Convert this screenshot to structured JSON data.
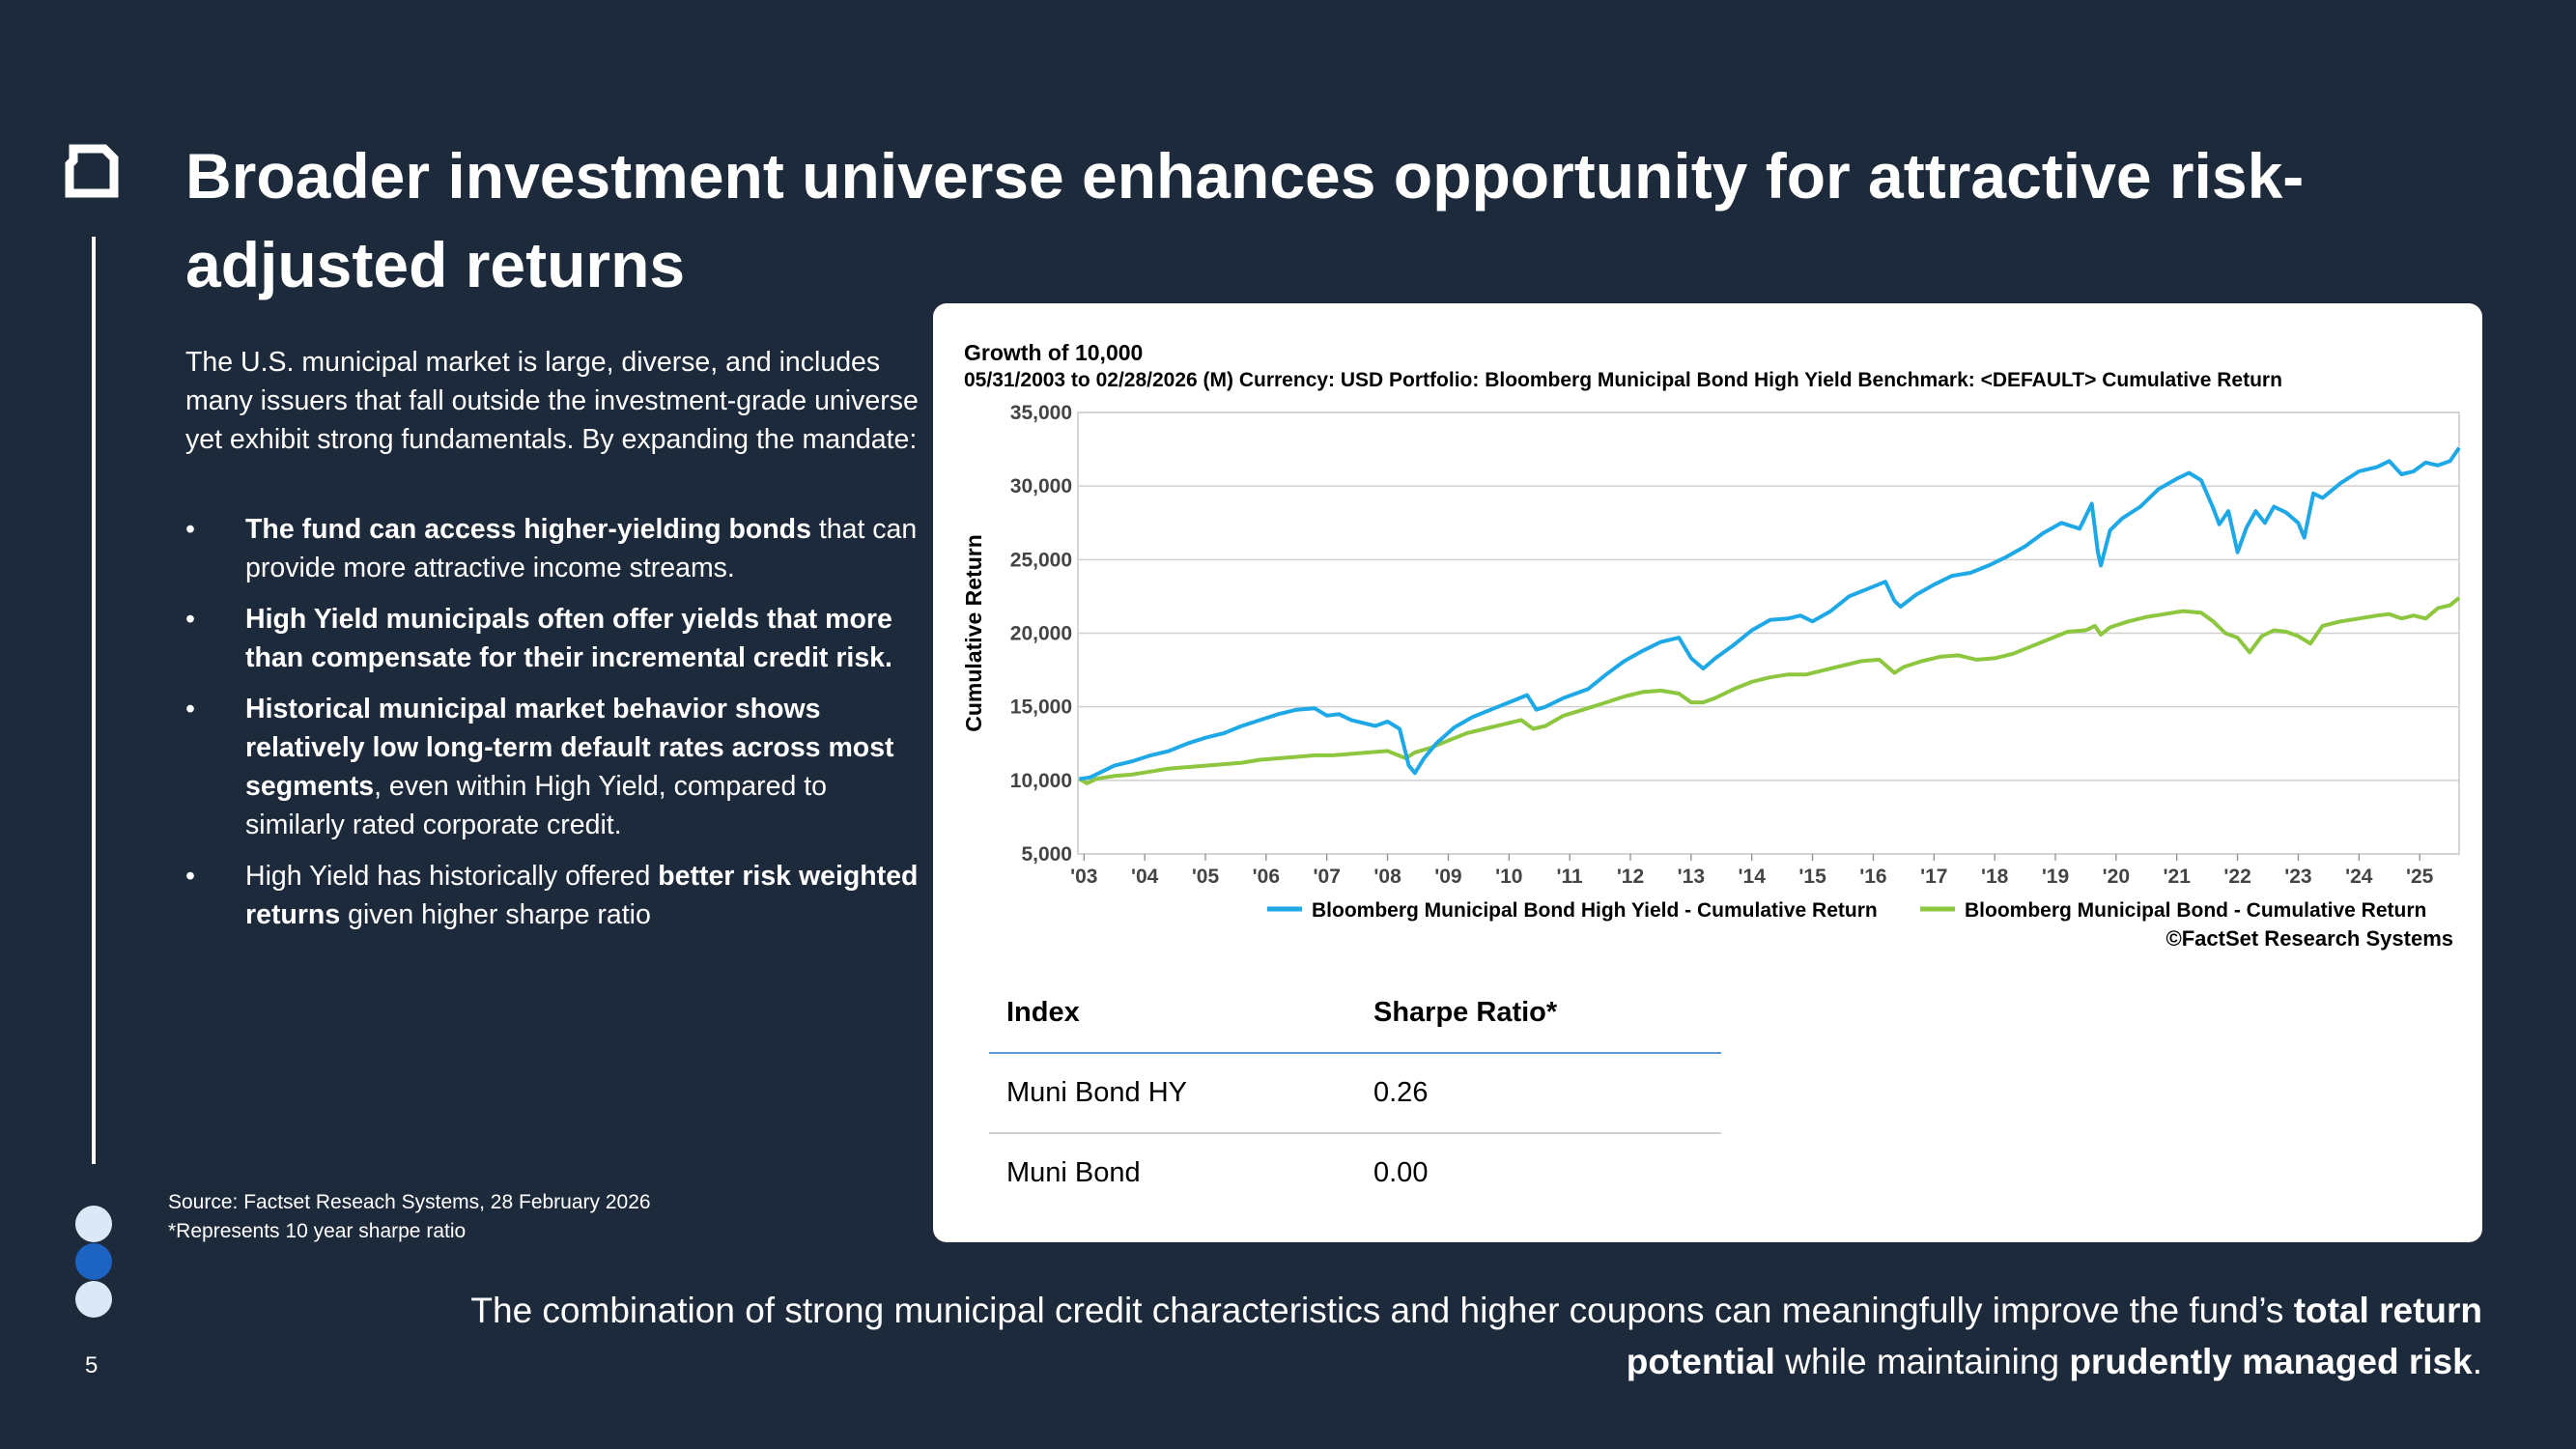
{
  "page_number": "5",
  "title": "Broader investment universe enhances opportunity for attractive risk-adjusted returns",
  "intro": "The U.S. municipal market is large, diverse, and includes many issuers that fall outside the investment-grade universe yet exhibit strong fundamentals. By expanding the mandate:",
  "bullet_marker": "•",
  "bullets": [
    {
      "bold": "The fund can access higher-yielding bonds",
      "rest": " that can provide more attractive income streams."
    },
    {
      "bold": "High Yield municipals often offer yields that more than compensate for their incremental credit risk.",
      "rest": ""
    },
    {
      "bold": "Historical municipal market behavior shows relatively low long-term default rates across most segments",
      "rest": ", even within High Yield, compared to similarly rated corporate credit."
    },
    {
      "pre": "High Yield has historically offered ",
      "bold": "better risk weighted returns",
      "rest": " given higher sharpe ratio"
    }
  ],
  "source": {
    "line1": "Source: Factset Reseach Systems, 28 February 2026",
    "line2": "*Represents 10 year sharpe ratio"
  },
  "table": {
    "headers": {
      "index": "Index",
      "sharpe": "Sharpe Ratio*"
    },
    "rows": [
      {
        "index": "Muni Bond HY",
        "sharpe": "0.26"
      },
      {
        "index": "Muni Bond",
        "sharpe": "0.00"
      }
    ]
  },
  "bottom": {
    "part1": "The combination of strong municipal credit characteristics and higher coupons can meaningfully improve the fund’s ",
    "bold1": "total return potential",
    "part2": " while maintaining ",
    "bold2": "prudently managed risk",
    "part3": "."
  },
  "chart_data": {
    "type": "line",
    "title": "Growth of 10,000",
    "subtitle": "05/31/2003 to 02/28/2026 (M) Currency: USD Portfolio: Bloomberg Municipal Bond High Yield Benchmark: <DEFAULT> Cumulative Return",
    "ylabel": "Cumulative Return",
    "xlabel": "",
    "ylim": [
      5000,
      35000
    ],
    "yticks": [
      5000,
      10000,
      15000,
      20000,
      25000,
      30000,
      35000
    ],
    "ytick_labels": [
      "5,000",
      "10,000",
      "15,000",
      "20,000",
      "25,000",
      "30,000",
      "35,000"
    ],
    "xlim": [
      2003.4,
      2026.15
    ],
    "xtick_positions": [
      2003.5,
      2004.5,
      2005.5,
      2006.5,
      2007.5,
      2008.5,
      2009.5,
      2010.5,
      2011.5,
      2012.5,
      2013.5,
      2014.5,
      2015.5,
      2016.5,
      2017.5,
      2018.5,
      2019.5,
      2020.5,
      2021.5,
      2022.5,
      2023.5,
      2024.5,
      2025.5
    ],
    "xtick_labels": [
      "'03",
      "'04",
      "'05",
      "'06",
      "'07",
      "'08",
      "'09",
      "'10",
      "'11",
      "'12",
      "'13",
      "'14",
      "'15",
      "'16",
      "'17",
      "'18",
      "'19",
      "'20",
      "'21",
      "'22",
      "'23",
      "'24",
      "'25"
    ],
    "grid": true,
    "legend_position": "bottom-right",
    "credit": "©FactSet Research Systems",
    "series": [
      {
        "name": "Bloomberg Municipal Bond High Yield - Cumulative Return",
        "color": "#1ea8e6",
        "x": [
          2003.42,
          2003.6,
          2003.8,
          2004.0,
          2004.3,
          2004.6,
          2004.9,
          2005.2,
          2005.5,
          2005.8,
          2006.1,
          2006.4,
          2006.7,
          2007.0,
          2007.3,
          2007.5,
          2007.7,
          2007.9,
          2008.1,
          2008.3,
          2008.5,
          2008.7,
          2008.85,
          2008.95,
          2009.1,
          2009.3,
          2009.6,
          2009.9,
          2010.2,
          2010.5,
          2010.8,
          2010.95,
          2011.1,
          2011.4,
          2011.8,
          2012.1,
          2012.4,
          2012.7,
          2013.0,
          2013.3,
          2013.5,
          2013.7,
          2013.9,
          2014.2,
          2014.5,
          2014.8,
          2015.1,
          2015.3,
          2015.5,
          2015.8,
          2016.1,
          2016.4,
          2016.7,
          2016.85,
          2016.95,
          2017.2,
          2017.5,
          2017.8,
          2018.1,
          2018.4,
          2018.7,
          2019.0,
          2019.3,
          2019.6,
          2019.9,
          2020.1,
          2020.2,
          2020.25,
          2020.4,
          2020.6,
          2020.9,
          2021.2,
          2021.5,
          2021.7,
          2021.9,
          2022.1,
          2022.2,
          2022.35,
          2022.5,
          2022.65,
          2022.8,
          2022.95,
          2023.1,
          2023.3,
          2023.5,
          2023.6,
          2023.75,
          2023.9,
          2024.2,
          2024.5,
          2024.8,
          2025.0,
          2025.2,
          2025.4,
          2025.6,
          2025.8,
          2026.0,
          2026.15
        ],
        "values": [
          10100,
          10200,
          10600,
          11000,
          11300,
          11700,
          12000,
          12500,
          12900,
          13200,
          13700,
          14100,
          14500,
          14800,
          14900,
          14400,
          14500,
          14100,
          13900,
          13700,
          14000,
          13500,
          11000,
          10500,
          11500,
          12500,
          13600,
          14300,
          14800,
          15300,
          15800,
          14800,
          15000,
          15600,
          16200,
          17200,
          18100,
          18800,
          19400,
          19700,
          18300,
          17600,
          18300,
          19200,
          20200,
          20900,
          21000,
          21200,
          20800,
          21500,
          22500,
          23000,
          23500,
          22200,
          21800,
          22600,
          23300,
          23900,
          24100,
          24600,
          25200,
          25900,
          26800,
          27500,
          27100,
          28800,
          25500,
          24600,
          27000,
          27800,
          28600,
          29800,
          30500,
          30900,
          30400,
          28500,
          27400,
          28300,
          25500,
          27200,
          28300,
          27500,
          28600,
          28200,
          27500,
          26500,
          29500,
          29200,
          30200,
          31000,
          31300,
          31700,
          30800,
          31000,
          31600,
          31400,
          31700,
          32600
        ]
      },
      {
        "name": "Bloomberg Municipal Bond - Cumulative Return",
        "color": "#8dc63f",
        "x": [
          2003.42,
          2003.55,
          2003.7,
          2004.0,
          2004.3,
          2004.6,
          2004.9,
          2005.2,
          2005.5,
          2005.8,
          2006.1,
          2006.4,
          2006.7,
          2007.0,
          2007.3,
          2007.6,
          2007.9,
          2008.2,
          2008.5,
          2008.8,
          2008.95,
          2009.2,
          2009.5,
          2009.8,
          2010.1,
          2010.4,
          2010.7,
          2010.9,
          2011.1,
          2011.4,
          2011.8,
          2012.1,
          2012.4,
          2012.7,
          2013.0,
          2013.3,
          2013.5,
          2013.7,
          2013.9,
          2014.2,
          2014.5,
          2014.8,
          2015.1,
          2015.4,
          2015.7,
          2016.0,
          2016.3,
          2016.6,
          2016.85,
          2017.0,
          2017.3,
          2017.6,
          2017.9,
          2018.2,
          2018.5,
          2018.8,
          2019.1,
          2019.4,
          2019.7,
          2020.0,
          2020.15,
          2020.25,
          2020.4,
          2020.7,
          2021.0,
          2021.3,
          2021.6,
          2021.9,
          2022.1,
          2022.3,
          2022.5,
          2022.7,
          2022.9,
          2023.1,
          2023.3,
          2023.5,
          2023.7,
          2023.9,
          2024.2,
          2024.5,
          2024.8,
          2025.0,
          2025.2,
          2025.4,
          2025.6,
          2025.8,
          2026.0,
          2026.15
        ],
        "values": [
          10100,
          9800,
          10100,
          10300,
          10400,
          10600,
          10800,
          10900,
          11000,
          11100,
          11200,
          11400,
          11500,
          11600,
          11700,
          11700,
          11800,
          11900,
          12000,
          11500,
          11900,
          12200,
          12700,
          13200,
          13500,
          13800,
          14100,
          13500,
          13700,
          14400,
          14900,
          15300,
          15700,
          16000,
          16100,
          15900,
          15300,
          15300,
          15600,
          16200,
          16700,
          17000,
          17200,
          17200,
          17500,
          17800,
          18100,
          18200,
          17300,
          17700,
          18100,
          18400,
          18500,
          18200,
          18300,
          18600,
          19100,
          19600,
          20100,
          20200,
          20500,
          19900,
          20400,
          20800,
          21100,
          21300,
          21500,
          21400,
          20800,
          20000,
          19700,
          18700,
          19800,
          20200,
          20100,
          19800,
          19300,
          20500,
          20800,
          21000,
          21200,
          21300,
          21000,
          21200,
          21000,
          21700,
          21900,
          22400
        ]
      }
    ]
  }
}
